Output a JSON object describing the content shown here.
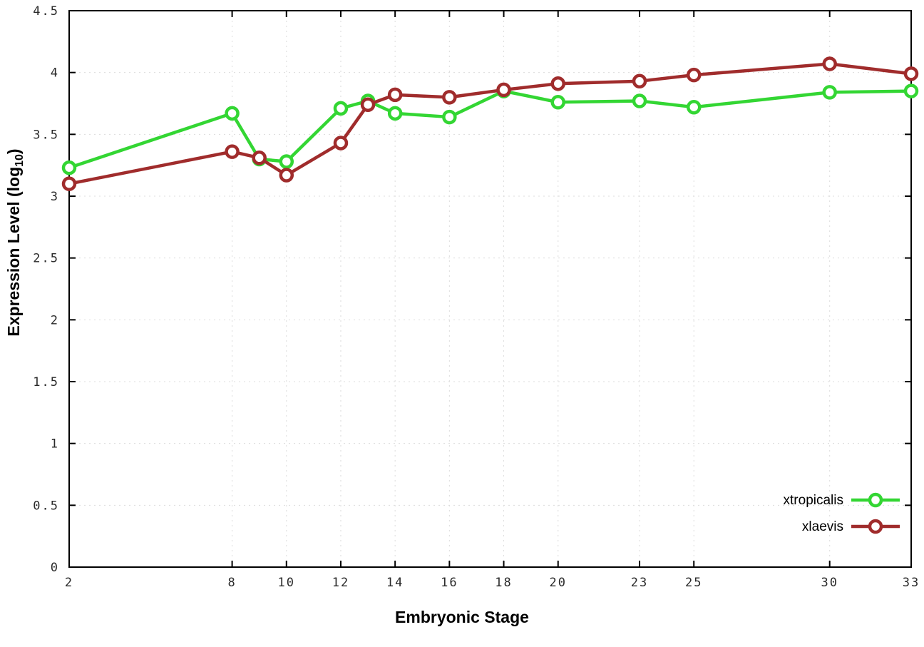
{
  "chart_data": {
    "type": "line",
    "x": [
      2,
      8,
      9,
      10,
      12,
      13,
      14,
      16,
      18,
      20,
      23,
      25,
      30,
      33
    ],
    "series": [
      {
        "name": "xtropicalis",
        "color": "#33d633",
        "values": [
          3.23,
          3.67,
          3.3,
          3.28,
          3.71,
          3.77,
          3.67,
          3.64,
          3.85,
          3.76,
          3.77,
          3.72,
          3.84,
          3.85
        ]
      },
      {
        "name": "xlaevis",
        "color": "#a02c2c",
        "values": [
          3.1,
          3.36,
          3.31,
          3.17,
          3.43,
          3.74,
          3.82,
          3.8,
          3.86,
          3.91,
          3.93,
          3.98,
          4.07,
          3.99
        ]
      }
    ],
    "title": "",
    "xlabel": "Embryonic Stage",
    "ylabel_main": "Expression Level (log",
    "ylabel_sub": "10",
    "ylabel_close": ")",
    "xlim": [
      2,
      33
    ],
    "ylim": [
      0,
      4.5
    ],
    "xticks": [
      2,
      8,
      10,
      12,
      14,
      16,
      18,
      20,
      23,
      25,
      30,
      33
    ],
    "ytick_values": [
      0,
      0.5,
      1,
      1.5,
      2,
      2.5,
      3,
      3.5,
      4,
      4.5
    ],
    "ytick_labels": [
      "0",
      "0.5",
      "1",
      "1.5",
      "2",
      "2.5",
      "3",
      "3.5",
      "4",
      "4.5"
    ],
    "grid": true,
    "legend_position": "bottom-right",
    "legend_entries": [
      "xtropicalis",
      "xlaevis"
    ],
    "colors": {
      "border": "#000000",
      "grid": "#dcdcdc",
      "tick_text": "#2a2a2a",
      "background": "#ffffff"
    }
  }
}
